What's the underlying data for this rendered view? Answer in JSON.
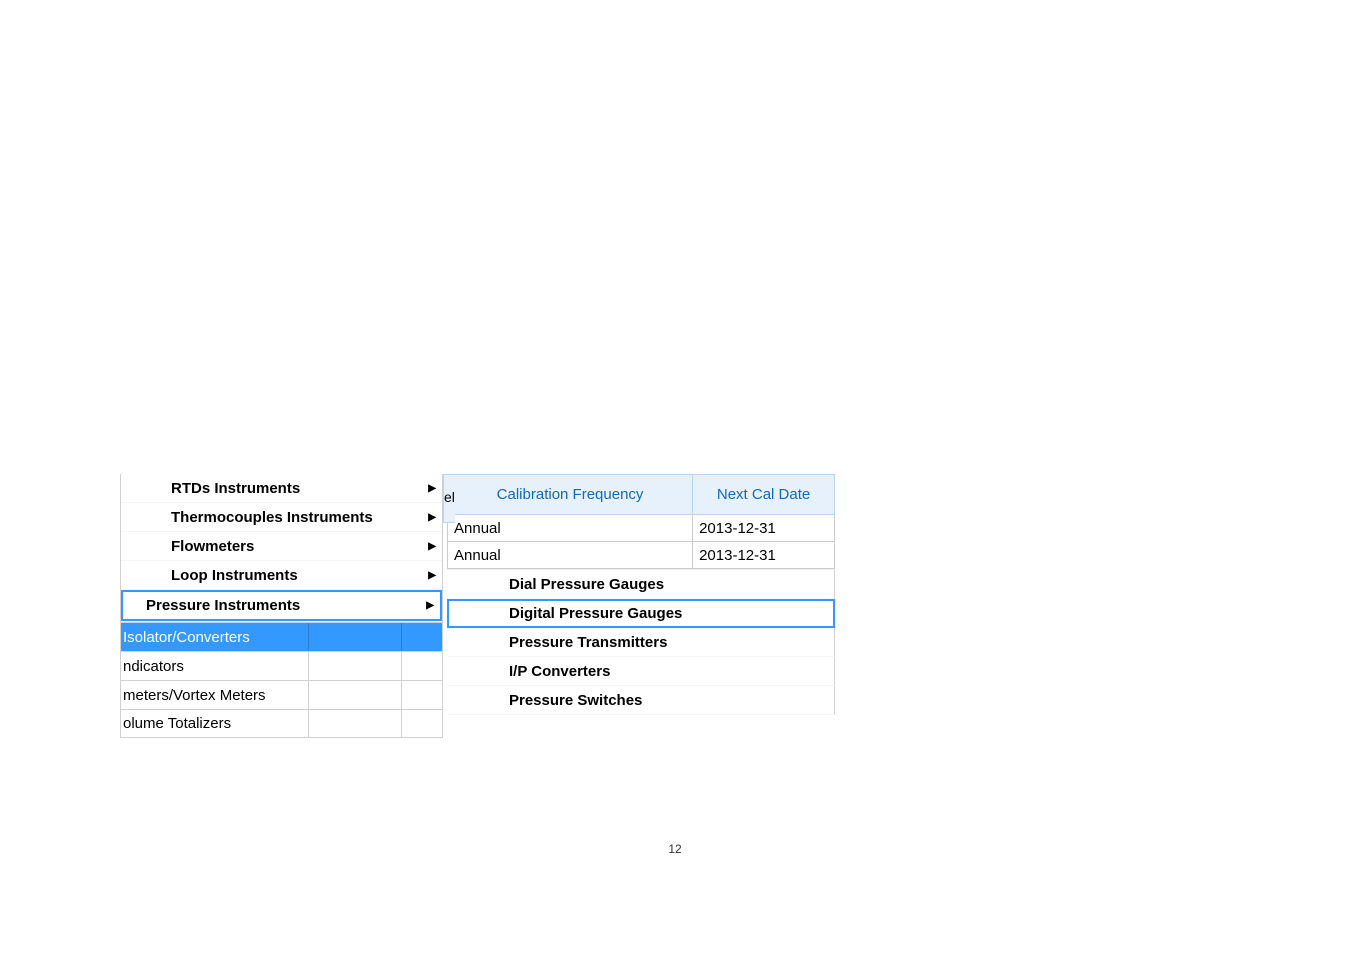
{
  "colors": {
    "highlight_border": "#3399ff",
    "header_bg": "#e7f1fb",
    "header_text": "#0f6ac0",
    "header_border": "#b8d6f2",
    "cell_border": "#cccccc",
    "selected_row_bg": "#3399ff",
    "selected_row_text": "#ffffff",
    "page_bg": "#ffffff"
  },
  "menu": {
    "items": [
      {
        "label": "RTDs Instruments",
        "has_arrow": true
      },
      {
        "label": "Thermocouples Instruments",
        "has_arrow": true
      },
      {
        "label": "Flowmeters",
        "has_arrow": true
      },
      {
        "label": "Loop Instruments",
        "has_arrow": true
      },
      {
        "label": "Pressure Instruments",
        "has_arrow": true,
        "highlighted": true
      }
    ]
  },
  "under_rows": [
    {
      "label": "Isolator/Converters",
      "selected": true
    },
    {
      "label": "ndicators",
      "selected": false
    },
    {
      "label": "meters/Vortex Meters",
      "selected": false
    },
    {
      "label": "olume Totalizers",
      "selected": false
    }
  ],
  "sliver_text": "el",
  "table": {
    "headers": {
      "frequency": "Calibration Frequency",
      "next_date": "Next Cal Date"
    },
    "rows": [
      {
        "frequency": "Annual",
        "next_date": "2013-12-31"
      },
      {
        "frequency": "Annual",
        "next_date": "2013-12-31"
      }
    ]
  },
  "submenu": {
    "items": [
      {
        "label": "Dial Pressure Gauges"
      },
      {
        "label": "Digital Pressure Gauges",
        "highlighted": true
      },
      {
        "label": "Pressure Transmitters"
      },
      {
        "label": "I/P Converters"
      },
      {
        "label": "Pressure Switches"
      }
    ]
  },
  "page_number": "12",
  "arrow_glyph": "▶"
}
